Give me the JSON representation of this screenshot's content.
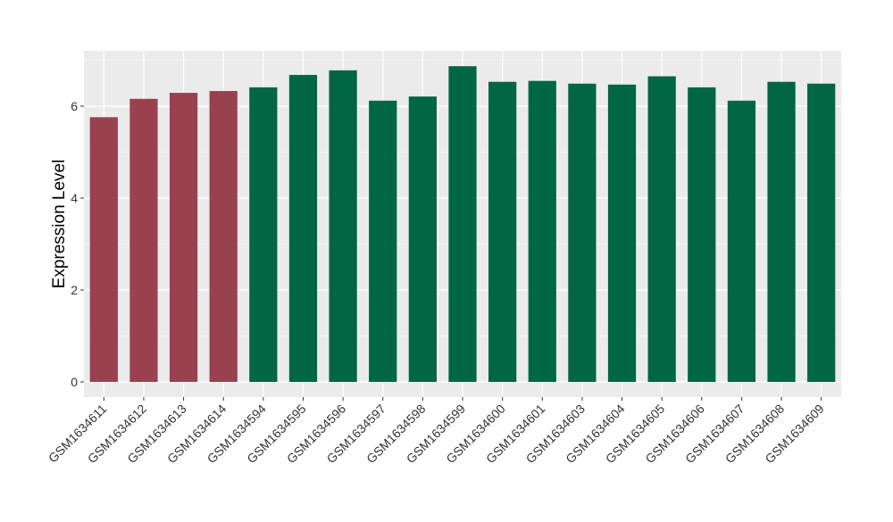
{
  "chart_data": {
    "type": "bar",
    "ylabel": "Expression Level",
    "xlabel": "",
    "ylim": [
      -0.3,
      7.2
    ],
    "yticks": [
      0,
      2,
      4,
      6
    ],
    "grid": true,
    "categories": [
      "GSM1634611",
      "GSM1634612",
      "GSM1634613",
      "GSM1634614",
      "GSM1634594",
      "GSM1634595",
      "GSM1634596",
      "GSM1634597",
      "GSM1634598",
      "GSM1634599",
      "GSM1634600",
      "GSM1634601",
      "GSM1634603",
      "GSM1634604",
      "GSM1634605",
      "GSM1634606",
      "GSM1634607",
      "GSM1634608",
      "GSM1634609"
    ],
    "values": [
      5.76,
      6.16,
      6.29,
      6.33,
      6.41,
      6.68,
      6.78,
      6.12,
      6.21,
      6.87,
      6.53,
      6.55,
      6.49,
      6.47,
      6.65,
      6.41,
      6.12,
      6.53,
      6.49
    ],
    "groups": [
      "a",
      "a",
      "a",
      "a",
      "b",
      "b",
      "b",
      "b",
      "b",
      "b",
      "b",
      "b",
      "b",
      "b",
      "b",
      "b",
      "b",
      "b",
      "b"
    ],
    "group_colors": {
      "a": "#99414F",
      "b": "#006644"
    },
    "panel_color": "#EBEBEB",
    "gridline_color": "#FFFFFF"
  }
}
